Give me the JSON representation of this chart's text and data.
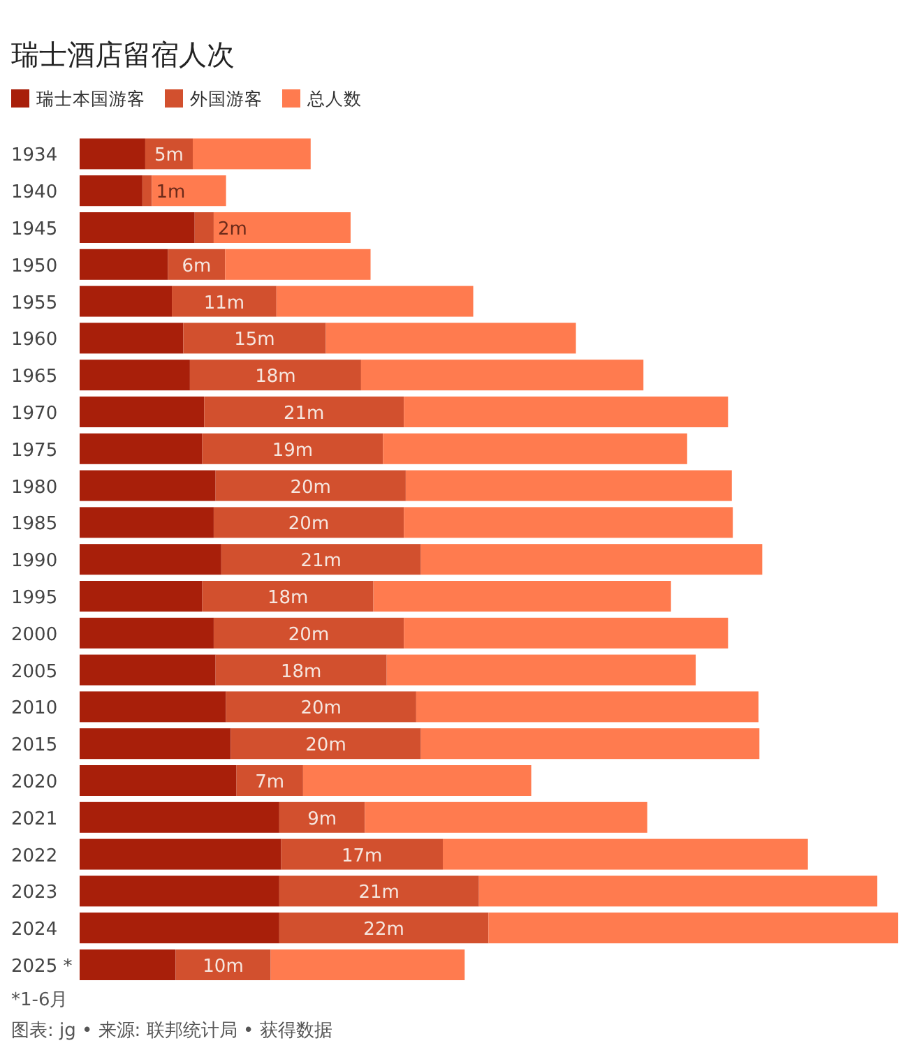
{
  "chart_data": {
    "type": "bar",
    "title": "瑞士酒店留宿人次",
    "orientation": "horizontal",
    "stacked": true,
    "legend": "top left",
    "categories": [
      "1934",
      "1940",
      "1945",
      "1950",
      "1955",
      "1960",
      "1965",
      "1970",
      "1975",
      "1980",
      "1985",
      "1990",
      "1995",
      "2000",
      "2005",
      "2010",
      "2015",
      "2020",
      "2021",
      "2022",
      "2023",
      "2024",
      "2025 *"
    ],
    "series": [
      {
        "name": "瑞士本国游客",
        "color": "#a81f0a",
        "values": [
          6.9,
          6.6,
          12.1,
          9.3,
          9.7,
          10.9,
          11.6,
          13.1,
          12.9,
          14.3,
          14.1,
          14.9,
          12.9,
          14.1,
          14.3,
          15.4,
          15.9,
          16.5,
          21,
          21.2,
          21,
          21,
          10.1
        ]
      },
      {
        "name": "外国游客",
        "color": "#d2502e",
        "values": [
          5,
          1,
          2,
          6,
          11,
          15,
          18,
          21,
          19,
          20,
          20,
          21,
          18,
          20,
          18,
          20,
          20,
          7,
          9,
          17,
          21,
          22,
          10
        ],
        "value_labels": [
          "5m",
          "1m",
          "2m",
          "6m",
          "11m",
          "15m",
          "18m",
          "21m",
          "19m",
          "20m",
          "20m",
          "21m",
          "18m",
          "20m",
          "18m",
          "20m",
          "20m",
          "7m",
          "9m",
          "17m",
          "21m",
          "22m",
          "10m"
        ]
      },
      {
        "name": "总人数",
        "color": "#ff7b4f",
        "values": [
          12.4,
          7.8,
          14.4,
          15.3,
          20.7,
          26.3,
          29.7,
          34.1,
          32,
          34.3,
          34.6,
          35.9,
          31.3,
          34.1,
          32.5,
          36,
          35.6,
          24,
          29.7,
          38.4,
          41.9,
          43.1,
          20.4
        ]
      }
    ],
    "annotations": [
      "*1-6月",
      "图表: jg • 来源: 联邦统计局 • 获得数据"
    ]
  }
}
